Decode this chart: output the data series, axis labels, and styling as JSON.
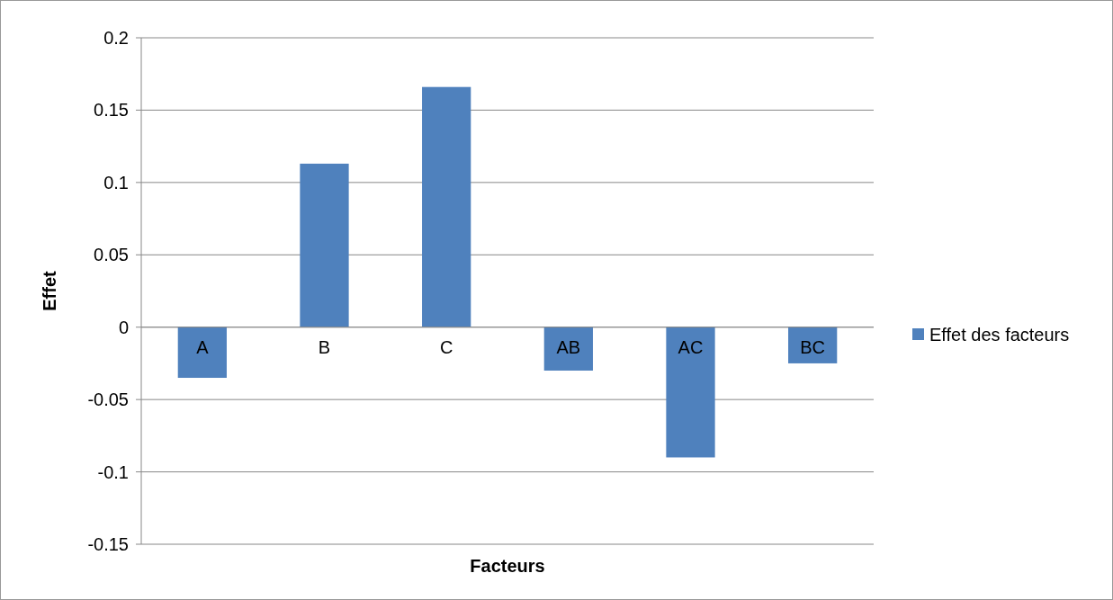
{
  "chart_data": {
    "type": "bar",
    "xlabel": "Facteurs",
    "ylabel": "Effet",
    "categories": [
      "A",
      "B",
      "C",
      "AB",
      "AC",
      "BC"
    ],
    "series": [
      {
        "name": "Effet des facteurs",
        "color": "#4f81bd",
        "values": [
          -0.035,
          0.113,
          0.166,
          -0.03,
          -0.09,
          -0.025
        ]
      }
    ],
    "ylim": [
      -0.15,
      0.2
    ],
    "yticks": [
      -0.15,
      -0.1,
      -0.05,
      0,
      0.05,
      0.1,
      0.15,
      0.2
    ],
    "grid": "y",
    "legend": "right"
  }
}
